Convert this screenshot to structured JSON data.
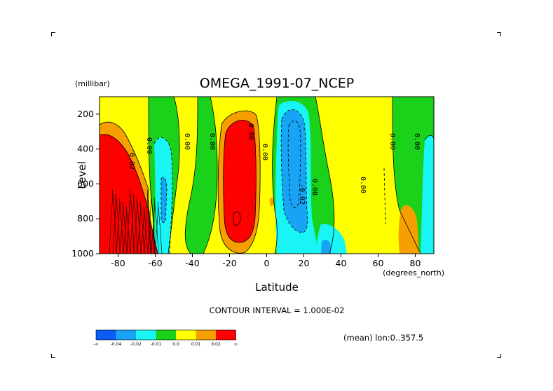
{
  "colors": {
    "c1": "#0a5cf5",
    "c2": "#19a3f5",
    "c3": "#19f5f5",
    "c4": "#19d219",
    "c5": "#ffff00",
    "c6": "#f5a000",
    "c7": "#ff0000"
  },
  "chart_data": {
    "type": "contour",
    "title": "OMEGA_1991-07_NCEP",
    "xlabel": "Latitude",
    "xunit": "(degrees_north)",
    "ylabel": "Level",
    "yunit": "(millibar)",
    "xlim": [
      -90,
      90
    ],
    "ylim": [
      1000,
      100
    ],
    "xticks": [
      -80,
      -60,
      -40,
      -20,
      0,
      20,
      40,
      60,
      80
    ],
    "yticks": [
      200,
      400,
      600,
      800,
      1000
    ],
    "xtick_labels": [
      "-80",
      "-60",
      "-40",
      "-20",
      "0",
      "20",
      "40",
      "60",
      "80"
    ],
    "ytick_labels": [
      "200",
      "400",
      "600",
      "800",
      "1000"
    ],
    "contour_interval_text": "CONTOUR INTERVAL = 1.000E-02",
    "mean_text": "(mean) lon:0..357.5",
    "contour_labels": [
      "0.02",
      "0.00",
      "0.00",
      "0.00",
      "0.00",
      "-0.02",
      "0.00",
      "0.00",
      "0.00",
      "0.00",
      "0.00"
    ],
    "legend": {
      "colors": [
        "#0a5cf5",
        "#19a3f5",
        "#19f5f5",
        "#19d219",
        "#ffff00",
        "#f5a000",
        "#ff0000"
      ],
      "labels": [
        "-∞",
        "-0.04",
        "-0.02",
        "-0.01",
        "0.0",
        "0.01",
        "0.02",
        "∞"
      ]
    }
  }
}
